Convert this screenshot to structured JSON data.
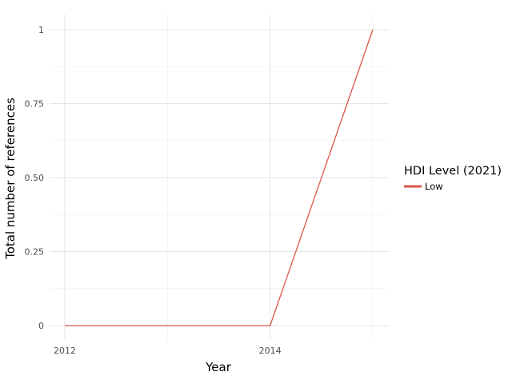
{
  "chart_data": {
    "type": "line",
    "xlabel": "Year",
    "ylabel": "Total number of references",
    "x_ticks": [
      "2012",
      "2014"
    ],
    "y_ticks": [
      "0",
      "0.25",
      "0.50",
      "0.75",
      "1"
    ],
    "xlim": [
      2012,
      2015
    ],
    "ylim": [
      0,
      1
    ],
    "grid": true,
    "legend": {
      "title": "HDI Level (2021)",
      "placement": "right",
      "entries": [
        "Low"
      ]
    },
    "series": [
      {
        "name": "Low",
        "color": "#d9564a",
        "x": [
          2012,
          2013,
          2014,
          2015
        ],
        "y": [
          0,
          0,
          0,
          1
        ]
      }
    ]
  }
}
